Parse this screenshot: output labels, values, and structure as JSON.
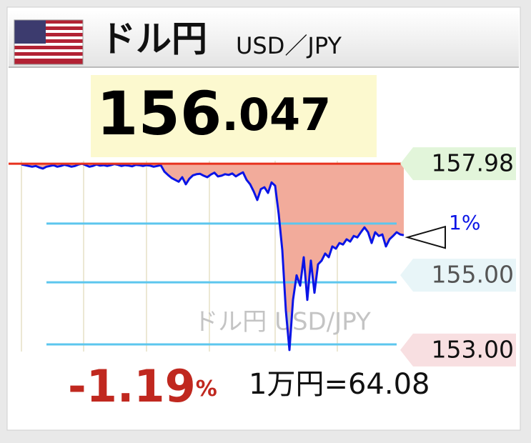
{
  "header": {
    "title": "ドル円",
    "subtitle": "USD／JPY"
  },
  "price": {
    "integer": "156",
    "decimal": ".047"
  },
  "chart_data": {
    "type": "line",
    "watermark": "ドル円 USD/JPY",
    "ylim": [
      152.96,
      158.25
    ],
    "yticks": [
      157.98,
      {
        "value": 155,
        "label": "155.00"
      },
      {
        "value": 153,
        "label": "153.00"
      }
    ],
    "tick_label_colors": [
      "#e2f5da",
      "#e8f5f8",
      "#f8dfe1"
    ],
    "reference_color": "#e8321e",
    "area_color": "#f2ab9b",
    "grid_lines": [
      156.38,
      154.81,
      153.15
    ],
    "grid_color": "#5cc6ee",
    "annotation": "1%",
    "series": [
      {
        "color": "#0a14e6",
        "values": [
          157.96,
          157.94,
          157.92,
          157.9,
          157.92,
          157.88,
          157.85,
          157.9,
          157.92,
          157.94,
          157.9,
          157.92,
          157.95,
          157.93,
          157.9,
          157.92,
          157.96,
          157.98,
          157.94,
          157.9,
          157.92,
          157.96,
          157.93,
          157.94,
          157.92,
          157.94,
          157.97,
          157.95,
          157.92,
          157.94,
          157.93,
          157.91,
          157.95,
          157.94,
          157.92,
          157.94,
          157.93,
          157.9,
          157.92,
          157.94,
          157.77,
          157.68,
          157.6,
          157.55,
          157.5,
          157.62,
          157.43,
          157.58,
          157.67,
          157.7,
          157.71,
          157.66,
          157.62,
          157.69,
          157.74,
          157.64,
          157.66,
          157.7,
          157.68,
          157.72,
          157.64,
          157.7,
          157.75,
          157.55,
          157.43,
          157.24,
          157.01,
          157.3,
          157.35,
          157.2,
          157.48,
          157.39,
          156.63,
          155.67,
          154.05,
          153.0,
          154.34,
          155.0,
          154.72,
          155.48,
          154.34,
          155.39,
          154.53,
          155.29,
          155.39,
          155.58,
          155.48,
          155.77,
          155.71,
          155.86,
          155.82,
          155.96,
          155.9,
          156.05,
          156.01,
          156.15,
          156.28,
          156.15,
          155.86,
          156.15,
          156.05,
          156.09,
          155.77,
          155.96,
          156.05,
          156.15,
          156.09,
          156.07
        ]
      }
    ]
  },
  "change": {
    "value": "-1.19",
    "unit": "%"
  },
  "conversion": "1万円=64.08"
}
